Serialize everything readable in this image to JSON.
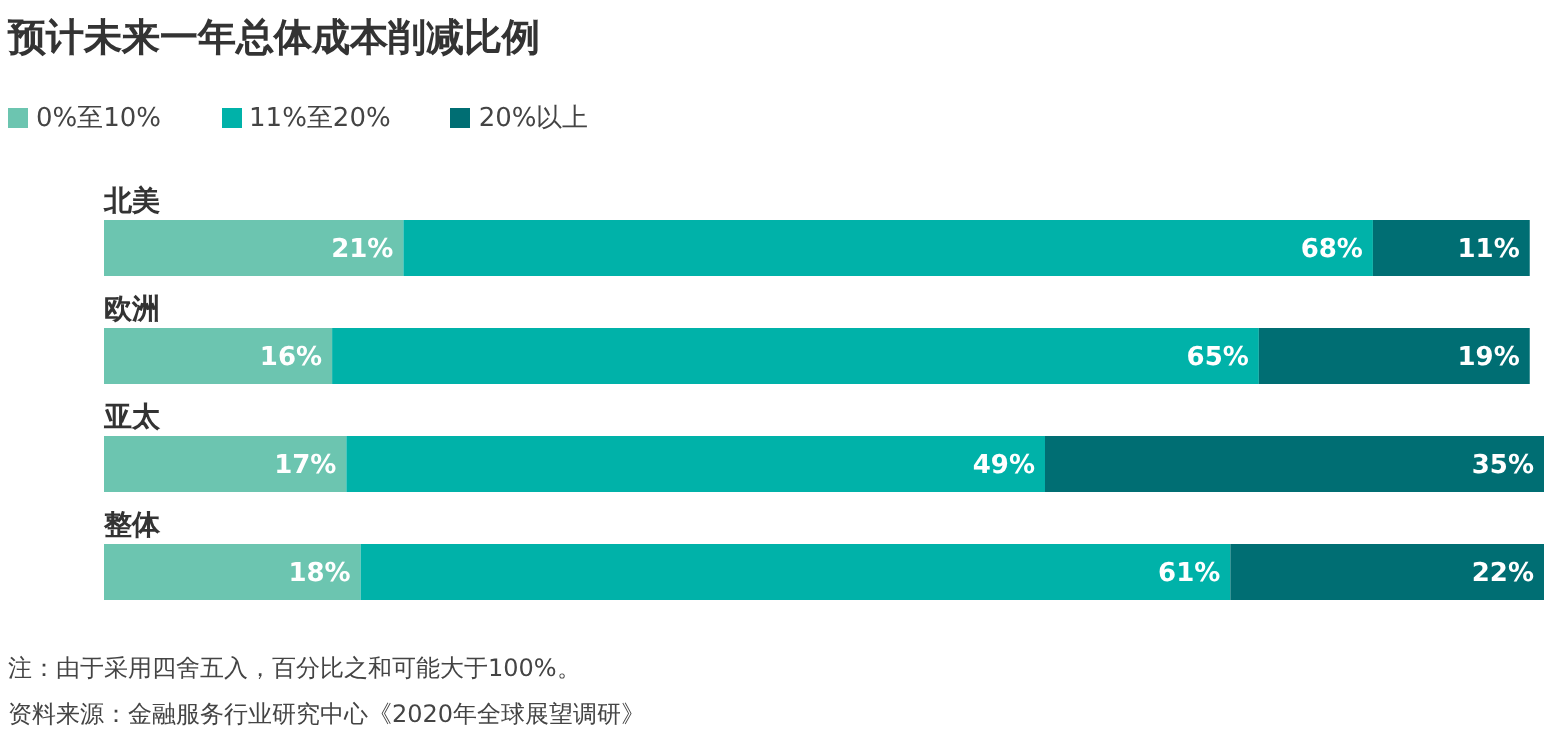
{
  "chart_data": {
    "type": "bar",
    "orientation": "horizontal",
    "stacked": true,
    "tick_labels": false,
    "title": "预计未来一年总体成本削减比例",
    "categories": [
      "北美",
      "欧洲",
      "亚太",
      "整体"
    ],
    "legend": "top left",
    "series": [
      {
        "name": "0%至10%",
        "color": "#6cc5b0",
        "values": [
          21,
          16,
          17,
          18
        ],
        "value_labels": [
          "21%",
          "16%",
          "17%",
          "18%"
        ]
      },
      {
        "name": "11%至20%",
        "color": "#00b2a9",
        "values": [
          68,
          65,
          49,
          61
        ],
        "value_labels": [
          "68%",
          "65%",
          "49%",
          "61%"
        ]
      },
      {
        "name": "20%以上",
        "color": "#006e73",
        "values": [
          11,
          19,
          35,
          22
        ],
        "value_labels": [
          "11%",
          "19%",
          "35%",
          "22%"
        ]
      }
    ],
    "annotations": [
      "注：由于采用四舍五入，百分比之和可能大于100%。",
      "资料来源：金融服务行业研究中心《2020年全球展望调研》"
    ]
  }
}
